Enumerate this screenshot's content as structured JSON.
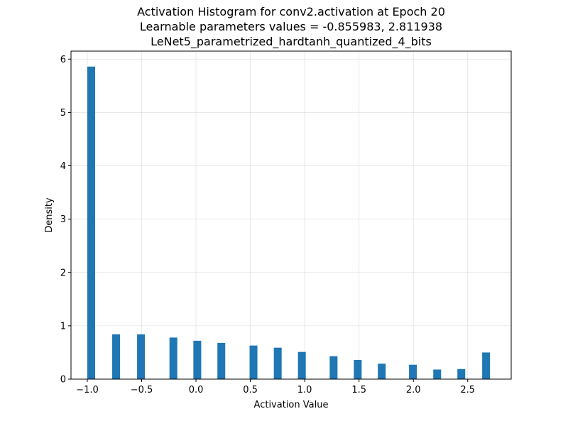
{
  "chart_data": {
    "type": "bar",
    "title_lines": [
      "Activation Histogram for conv2.activation at Epoch 20",
      "Learnable parameters values = -0.855983, 2.811938",
      "LeNet5_parametrized_hardtanh_quantized_4_bits"
    ],
    "xlabel": "Activation Value",
    "ylabel": "Density",
    "xlim": [
      -1.15,
      2.9
    ],
    "ylim": [
      0,
      6.15
    ],
    "grid": true,
    "bar_color": "#1f77b4",
    "xticks": [
      -1.0,
      -0.5,
      0.0,
      0.5,
      1.0,
      1.5,
      2.0,
      2.5
    ],
    "xtick_labels": [
      "−1.0",
      "−0.5",
      "0.0",
      "0.5",
      "1.0",
      "1.5",
      "2.0",
      "2.5"
    ],
    "yticks": [
      0,
      1,
      2,
      3,
      4,
      5,
      6
    ],
    "ytick_labels": [
      "0",
      "1",
      "2",
      "3",
      "4",
      "5",
      "6"
    ],
    "bin_width": 0.072,
    "bars": [
      {
        "x": -0.964,
        "value": 5.86
      },
      {
        "x": -0.735,
        "value": 0.84
      },
      {
        "x": -0.506,
        "value": 0.84
      },
      {
        "x": -0.208,
        "value": 0.78
      },
      {
        "x": 0.012,
        "value": 0.72
      },
      {
        "x": 0.233,
        "value": 0.68
      },
      {
        "x": 0.529,
        "value": 0.63
      },
      {
        "x": 0.752,
        "value": 0.59
      },
      {
        "x": 0.974,
        "value": 0.51
      },
      {
        "x": 1.266,
        "value": 0.43
      },
      {
        "x": 1.488,
        "value": 0.36
      },
      {
        "x": 1.709,
        "value": 0.29
      },
      {
        "x": 1.996,
        "value": 0.27
      },
      {
        "x": 2.219,
        "value": 0.18
      },
      {
        "x": 2.441,
        "value": 0.19
      },
      {
        "x": 2.669,
        "value": 0.5
      }
    ]
  }
}
